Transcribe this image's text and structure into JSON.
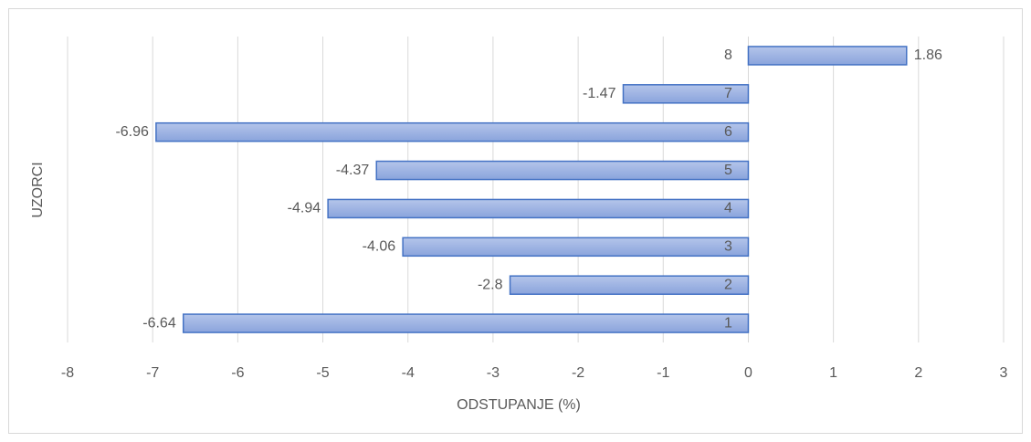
{
  "chart_data": {
    "type": "barh",
    "x_label": "ODSTUPANJE (%)",
    "y_label": "UZORCI",
    "categories": [
      "1",
      "2",
      "3",
      "4",
      "5",
      "6",
      "7",
      "8"
    ],
    "values": [
      -6.64,
      -2.8,
      -4.06,
      -4.94,
      -4.37,
      -6.96,
      -1.47,
      1.86
    ],
    "color": "#4472c4",
    "xlim": [
      -8,
      3
    ],
    "xticks": [
      -8,
      -7,
      -6,
      -5,
      -4,
      -3,
      -2,
      -1,
      0,
      1,
      2,
      3
    ],
    "grid": true
  }
}
